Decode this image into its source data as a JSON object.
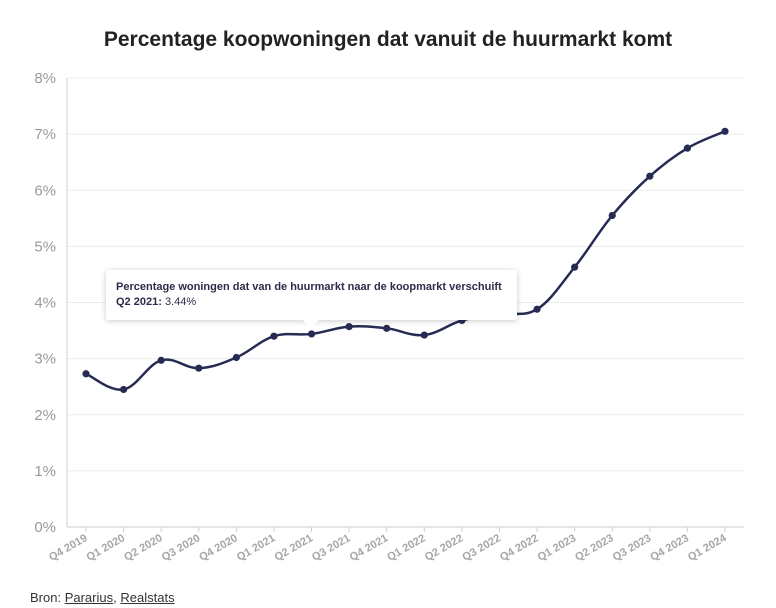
{
  "chart_data": {
    "type": "line",
    "title": "Percentage koopwoningen dat vanuit de huurmarkt komt",
    "categories": [
      "Q4 2019",
      "Q1 2020",
      "Q2 2020",
      "Q3 2020",
      "Q4 2020",
      "Q1 2021",
      "Q2 2021",
      "Q3 2021",
      "Q4 2021",
      "Q1 2022",
      "Q2 2022",
      "Q3 2022",
      "Q4 2022",
      "Q1 2023",
      "Q2 2023",
      "Q3 2023",
      "Q4 2023",
      "Q1 2024"
    ],
    "series": [
      {
        "name": "Percentage woningen dat van de huurmarkt naar de koopmarkt verschuift",
        "values": [
          2.73,
          2.45,
          2.97,
          2.83,
          3.02,
          3.4,
          3.44,
          3.57,
          3.54,
          3.42,
          3.68,
          3.8,
          3.88,
          4.63,
          5.55,
          6.25,
          6.75,
          7.05
        ],
        "color": "#262b54"
      }
    ],
    "ylim": [
      0,
      8
    ],
    "yticks": [
      0,
      1,
      2,
      3,
      4,
      5,
      6,
      7,
      8
    ],
    "ytick_labels": [
      "0%",
      "1%",
      "2%",
      "3%",
      "4%",
      "5%",
      "6%",
      "7%",
      "8%"
    ],
    "grid": true,
    "xlabel": "",
    "ylabel": ""
  },
  "tooltip": {
    "series_name": "Percentage woningen dat van de huurmarkt naar de koopmarkt verschuift",
    "label": "Q2 2021:",
    "value": "3.44%"
  },
  "source": {
    "prefix": "Bron:",
    "links": [
      "Pararius",
      "Realstats"
    ],
    "separator": ","
  }
}
